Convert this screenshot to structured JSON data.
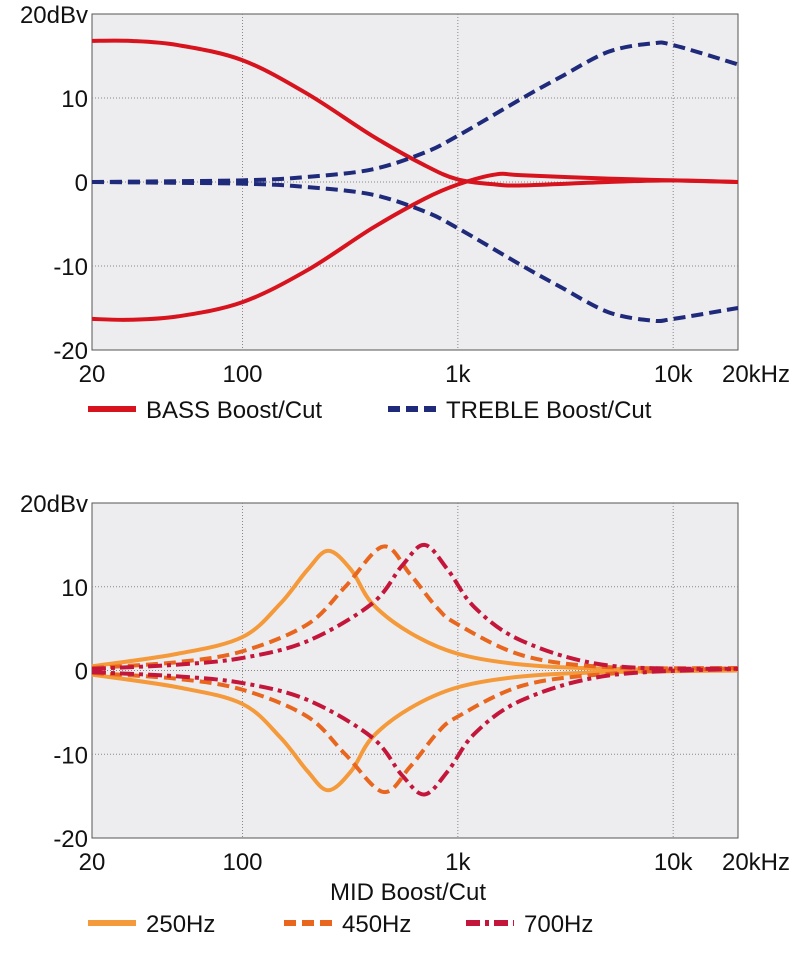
{
  "chart_data": [
    {
      "type": "line",
      "xscale": "log",
      "xlim": [
        20,
        20000
      ],
      "ylim": [
        -20,
        20
      ],
      "grid": true,
      "xticks": [
        {
          "v": 20,
          "label": "20"
        },
        {
          "v": 100,
          "label": "100"
        },
        {
          "v": 1000,
          "label": "1k"
        },
        {
          "v": 10000,
          "label": "10k"
        },
        {
          "v": 20000,
          "label": "20kHz"
        }
      ],
      "yticks": [
        {
          "v": 20,
          "label": "20dBv"
        },
        {
          "v": 10,
          "label": "10"
        },
        {
          "v": 0,
          "label": "0"
        },
        {
          "v": -10,
          "label": "-10"
        },
        {
          "v": -20,
          "label": "-20"
        }
      ],
      "xlabel": "",
      "legend_position": "bottom",
      "legend": [
        {
          "name": "BASS Boost/Cut",
          "color": "#d7141e",
          "dash": "solid"
        },
        {
          "name": "TREBLE Boost/Cut",
          "color": "#1f2a7a",
          "dash": "dashed"
        }
      ],
      "series": [
        {
          "legend": 0,
          "points": [
            [
              20,
              16.8
            ],
            [
              30,
              16.8
            ],
            [
              50,
              16.3
            ],
            [
              100,
              14.5
            ],
            [
              200,
              10.5
            ],
            [
              400,
              5.5
            ],
            [
              700,
              2
            ],
            [
              1000,
              0.3
            ],
            [
              1500,
              -0.3
            ],
            [
              2000,
              -0.4
            ],
            [
              5000,
              0
            ],
            [
              10000,
              0.2
            ],
            [
              20000,
              0
            ]
          ]
        },
        {
          "legend": 0,
          "points": [
            [
              20,
              -16.3
            ],
            [
              30,
              -16.4
            ],
            [
              50,
              -16
            ],
            [
              100,
              -14.3
            ],
            [
              200,
              -10.5
            ],
            [
              400,
              -5.5
            ],
            [
              700,
              -2
            ],
            [
              1000,
              -0.3
            ],
            [
              1500,
              0.9
            ],
            [
              2000,
              0.8
            ],
            [
              5000,
              0.4
            ],
            [
              10000,
              0.2
            ],
            [
              20000,
              0
            ]
          ]
        },
        {
          "legend": 1,
          "points": [
            [
              20,
              0
            ],
            [
              100,
              0.2
            ],
            [
              200,
              0.6
            ],
            [
              400,
              1.5
            ],
            [
              700,
              3.5
            ],
            [
              1000,
              5.5
            ],
            [
              2000,
              10
            ],
            [
              3000,
              12.5
            ],
            [
              5000,
              15.5
            ],
            [
              8000,
              16.5
            ],
            [
              10000,
              16.3
            ],
            [
              20000,
              14
            ]
          ]
        },
        {
          "legend": 1,
          "points": [
            [
              20,
              0
            ],
            [
              100,
              -0.2
            ],
            [
              200,
              -0.6
            ],
            [
              400,
              -1.5
            ],
            [
              700,
              -3.5
            ],
            [
              1000,
              -5.5
            ],
            [
              2000,
              -10
            ],
            [
              3000,
              -12.5
            ],
            [
              5000,
              -15.5
            ],
            [
              8000,
              -16.5
            ],
            [
              10000,
              -16.3
            ],
            [
              20000,
              -15
            ]
          ]
        }
      ]
    },
    {
      "type": "line",
      "xscale": "log",
      "xlim": [
        20,
        20000
      ],
      "ylim": [
        -20,
        20
      ],
      "grid": true,
      "xticks": [
        {
          "v": 20,
          "label": "20"
        },
        {
          "v": 100,
          "label": "100"
        },
        {
          "v": 1000,
          "label": "1k"
        },
        {
          "v": 10000,
          "label": "10k"
        },
        {
          "v": 20000,
          "label": "20kHz"
        }
      ],
      "yticks": [
        {
          "v": 20,
          "label": "20dBv"
        },
        {
          "v": 10,
          "label": "10"
        },
        {
          "v": 0,
          "label": "0"
        },
        {
          "v": -10,
          "label": "-10"
        },
        {
          "v": -20,
          "label": "-20"
        }
      ],
      "xlabel": "MID Boost/Cut",
      "legend_position": "bottom",
      "legend": [
        {
          "name": "250Hz",
          "color": "#f59a3a",
          "dash": "solid"
        },
        {
          "name": "450Hz",
          "color": "#e8661e",
          "dash": "dashed"
        },
        {
          "name": "700Hz",
          "color": "#c4163a",
          "dash": "dashdot"
        }
      ],
      "series": [
        {
          "legend": 0,
          "points": [
            [
              20,
              0.5
            ],
            [
              50,
              2
            ],
            [
              100,
              4
            ],
            [
              150,
              8
            ],
            [
              200,
              12
            ],
            [
              250,
              14.3
            ],
            [
              320,
              12
            ],
            [
              400,
              8
            ],
            [
              600,
              4.5
            ],
            [
              1000,
              2
            ],
            [
              2000,
              0.7
            ],
            [
              5000,
              0.2
            ],
            [
              20000,
              0
            ]
          ]
        },
        {
          "legend": 0,
          "points": [
            [
              20,
              -0.5
            ],
            [
              50,
              -2
            ],
            [
              100,
              -4
            ],
            [
              150,
              -8
            ],
            [
              200,
              -12
            ],
            [
              250,
              -14.3
            ],
            [
              320,
              -12
            ],
            [
              400,
              -8
            ],
            [
              600,
              -4.5
            ],
            [
              1000,
              -2
            ],
            [
              2000,
              -0.7
            ],
            [
              5000,
              -0.2
            ],
            [
              20000,
              0
            ]
          ]
        },
        {
          "legend": 1,
          "points": [
            [
              20,
              0.3
            ],
            [
              50,
              1
            ],
            [
              100,
              2.3
            ],
            [
              200,
              5.5
            ],
            [
              300,
              10
            ],
            [
              450,
              14.8
            ],
            [
              600,
              11.5
            ],
            [
              800,
              7.5
            ],
            [
              1000,
              5.5
            ],
            [
              2000,
              1.8
            ],
            [
              5000,
              0.4
            ],
            [
              20000,
              0.3
            ]
          ]
        },
        {
          "legend": 1,
          "points": [
            [
              20,
              -0.3
            ],
            [
              50,
              -1
            ],
            [
              100,
              -2.3
            ],
            [
              200,
              -5.5
            ],
            [
              300,
              -10
            ],
            [
              450,
              -14.5
            ],
            [
              600,
              -11.5
            ],
            [
              800,
              -7.5
            ],
            [
              1000,
              -5.5
            ],
            [
              2000,
              -1.8
            ],
            [
              5000,
              -0.4
            ],
            [
              20000,
              0.3
            ]
          ]
        },
        {
          "legend": 2,
          "points": [
            [
              20,
              0.2
            ],
            [
              50,
              0.7
            ],
            [
              100,
              1.5
            ],
            [
              200,
              3.5
            ],
            [
              400,
              8
            ],
            [
              550,
              12.5
            ],
            [
              700,
              15
            ],
            [
              900,
              12
            ],
            [
              1200,
              7.5
            ],
            [
              2000,
              3.5
            ],
            [
              5000,
              0.6
            ],
            [
              20000,
              0.2
            ]
          ]
        },
        {
          "legend": 2,
          "points": [
            [
              20,
              -0.2
            ],
            [
              50,
              -0.7
            ],
            [
              100,
              -1.5
            ],
            [
              200,
              -3.5
            ],
            [
              400,
              -8
            ],
            [
              550,
              -12.5
            ],
            [
              700,
              -14.8
            ],
            [
              900,
              -12
            ],
            [
              1200,
              -7.5
            ],
            [
              2000,
              -3.5
            ],
            [
              5000,
              -0.6
            ],
            [
              20000,
              0.2
            ]
          ]
        }
      ]
    }
  ]
}
